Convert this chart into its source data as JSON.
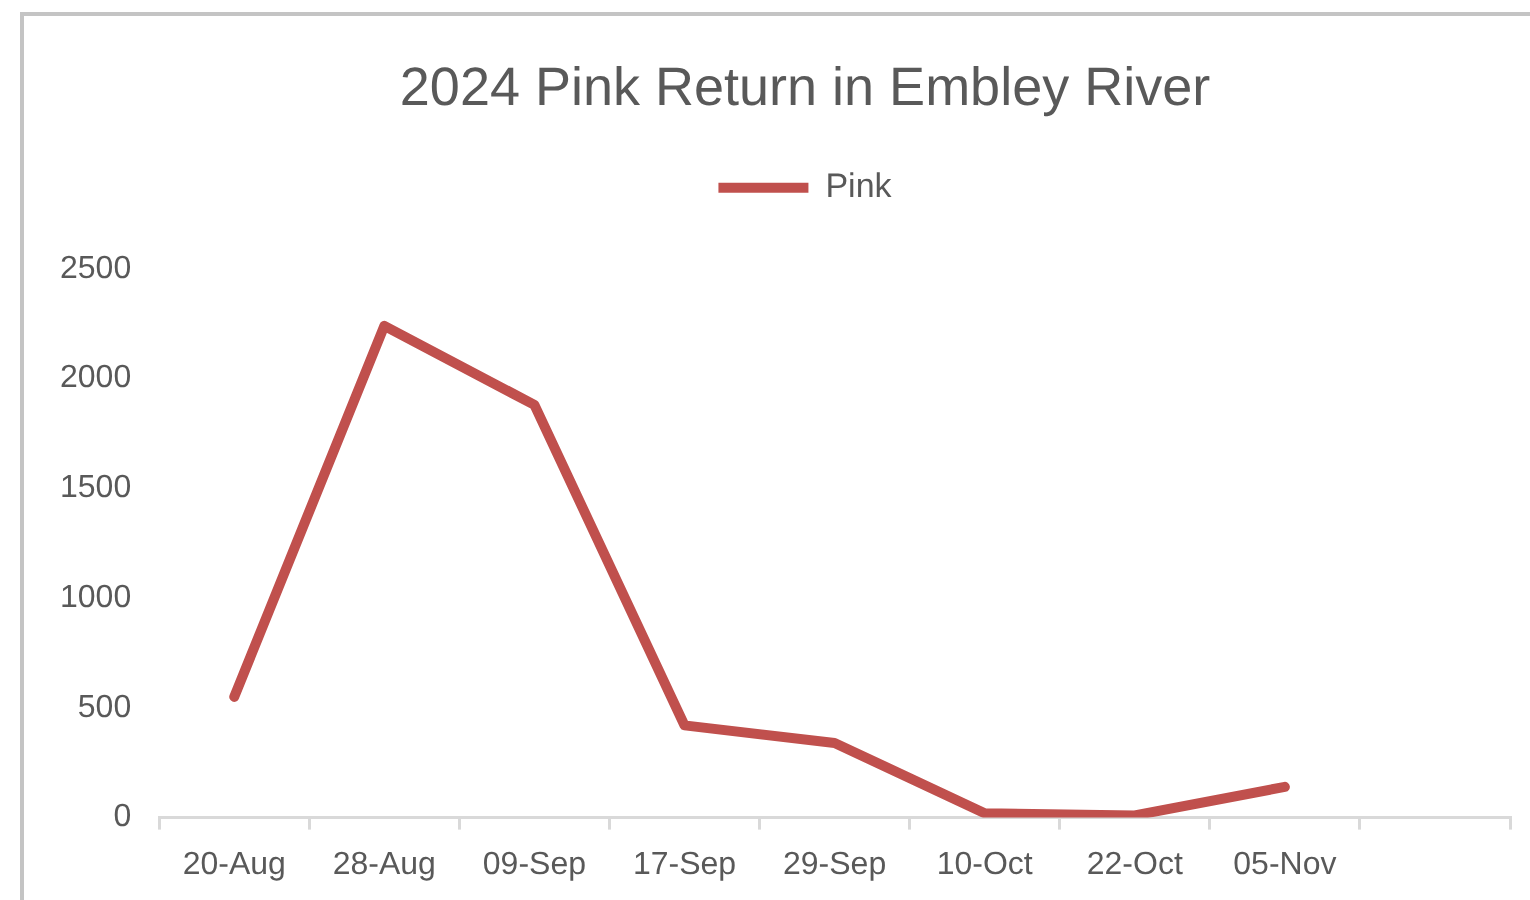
{
  "chart_data": {
    "type": "line",
    "title": "2024 Pink Return in Embley River",
    "categories": [
      "20-Aug",
      "28-Aug",
      "09-Sep",
      "17-Sep",
      "29-Sep",
      "10-Oct",
      "22-Oct",
      "05-Nov",
      null
    ],
    "series": [
      {
        "name": "Pink",
        "color": "#c0504d",
        "values": [
          550,
          2240,
          1880,
          420,
          340,
          20,
          10,
          140,
          null
        ]
      }
    ],
    "ylim": [
      0,
      2500
    ],
    "yticks": [
      0,
      500,
      1000,
      1500,
      2000,
      2500
    ],
    "grid": false,
    "legend": "top",
    "marker": "none",
    "line_style": "solid"
  }
}
